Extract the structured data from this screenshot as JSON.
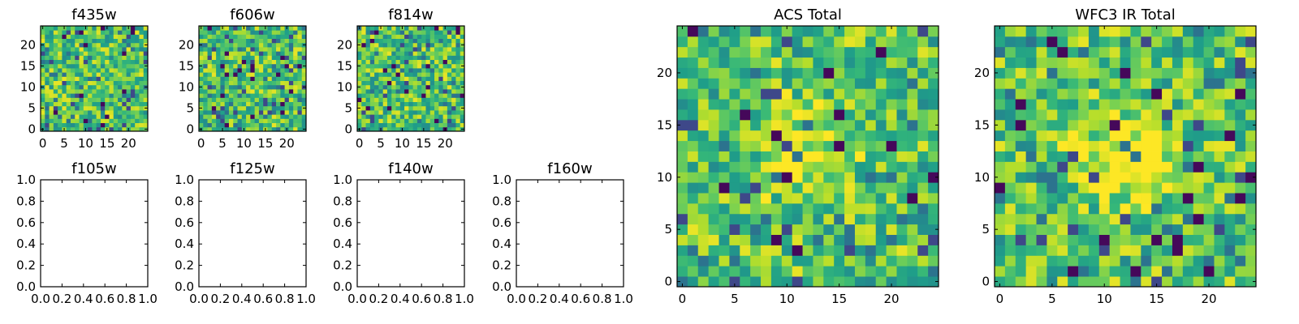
{
  "chart_data": [
    {
      "type": "heatmap",
      "title": "f435w",
      "colormap": "viridis",
      "xlim": [
        -0.5,
        24.5
      ],
      "ylim": [
        -0.5,
        24.5
      ],
      "xticks": [
        "0",
        "5",
        "10",
        "15",
        "20"
      ],
      "yticks": [
        "0",
        "5",
        "10",
        "15",
        "20"
      ],
      "scale": "fine",
      "seed": 11,
      "center_boost": 0
    },
    {
      "type": "heatmap",
      "title": "f606w",
      "colormap": "viridis",
      "xlim": [
        -0.5,
        24.5
      ],
      "ylim": [
        -0.5,
        24.5
      ],
      "xticks": [
        "0",
        "5",
        "10",
        "15",
        "20"
      ],
      "yticks": [
        "0",
        "5",
        "10",
        "15",
        "20"
      ],
      "scale": "fine",
      "seed": 23,
      "center_boost": 0
    },
    {
      "type": "heatmap",
      "title": "f814w",
      "colormap": "viridis",
      "xlim": [
        -0.5,
        24.5
      ],
      "ylim": [
        -0.5,
        24.5
      ],
      "xticks": [
        "0",
        "5",
        "10",
        "15",
        "20"
      ],
      "yticks": [
        "0",
        "5",
        "10",
        "15",
        "20"
      ],
      "scale": "fine",
      "seed": 37,
      "center_boost": 0
    },
    {
      "type": "empty",
      "title": "f105w",
      "xlim": [
        0,
        1
      ],
      "ylim": [
        0,
        1
      ],
      "xticks": [
        "0.0",
        "0.2",
        "0.4",
        "0.6",
        "0.8",
        "1.0"
      ],
      "yticks": [
        "0.0",
        "0.2",
        "0.4",
        "0.6",
        "0.8",
        "1.0"
      ]
    },
    {
      "type": "empty",
      "title": "f125w",
      "xlim": [
        0,
        1
      ],
      "ylim": [
        0,
        1
      ],
      "xticks": [
        "0.0",
        "0.2",
        "0.4",
        "0.6",
        "0.8",
        "1.0"
      ],
      "yticks": [
        "0.0",
        "0.2",
        "0.4",
        "0.6",
        "0.8",
        "1.0"
      ]
    },
    {
      "type": "empty",
      "title": "f140w",
      "xlim": [
        0,
        1
      ],
      "ylim": [
        0,
        1
      ],
      "xticks": [
        "0.0",
        "0.2",
        "0.4",
        "0.6",
        "0.8",
        "1.0"
      ],
      "yticks": [
        "0.0",
        "0.2",
        "0.4",
        "0.6",
        "0.8",
        "1.0"
      ]
    },
    {
      "type": "empty",
      "title": "f160w",
      "xlim": [
        0,
        1
      ],
      "ylim": [
        0,
        1
      ],
      "xticks": [
        "0.0",
        "0.2",
        "0.4",
        "0.6",
        "0.8",
        "1.0"
      ],
      "yticks": [
        "0.0",
        "0.2",
        "0.4",
        "0.6",
        "0.8",
        "1.0"
      ]
    },
    {
      "type": "heatmap",
      "title": "ACS Total",
      "colormap": "viridis",
      "xlim": [
        -0.5,
        24.5
      ],
      "ylim": [
        -0.5,
        24.5
      ],
      "xticks": [
        "0",
        "5",
        "10",
        "15",
        "20"
      ],
      "yticks": [
        "0",
        "5",
        "10",
        "15",
        "20"
      ],
      "scale": "large",
      "seed": 53,
      "center_boost": 0.25
    },
    {
      "type": "heatmap",
      "title": "WFC3 IR Total",
      "colormap": "viridis",
      "xlim": [
        -0.5,
        24.5
      ],
      "ylim": [
        -0.5,
        24.5
      ],
      "xticks": [
        "0",
        "5",
        "10",
        "15",
        "20"
      ],
      "yticks": [
        "0",
        "5",
        "10",
        "15",
        "20"
      ],
      "scale": "large",
      "seed": 71,
      "center_boost": 0.35
    }
  ]
}
